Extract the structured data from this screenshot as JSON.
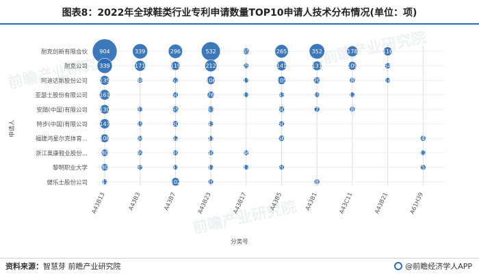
{
  "title": "图表8：2022年全球鞋类行业专利申请数量TOP10申请人技术分布情况(单位：项)",
  "source_label": "资料来源：",
  "source_text": "智慧芽 前瞻产业研究院",
  "brand": "@前瞻经济学人APP",
  "watermark": "前瞻产业研究院",
  "colors": {
    "bubble": "#2d6db5",
    "text_on_bubble": "#ffffff",
    "grid": "#dddddd",
    "axis_text": "#555555",
    "accent": "#2d6db5"
  },
  "chart_data": {
    "type": "scatter",
    "subtype": "bubble",
    "xlabel": "分类号",
    "ylabel": "申请人",
    "x_categories": [
      "A43B13",
      "A43B3",
      "A43B7",
      "A43B23",
      "A43B17",
      "A43B5",
      "A43B1",
      "A43C11",
      "A43B21",
      "A61H39"
    ],
    "y_categories": [
      "耐克创新有限合伙",
      "耐克公司",
      "阿迪达斯股份公司",
      "亚瑟士股份有限公司",
      "安踏(中国)有限公司",
      "特步(中国)有限公司",
      "福建鸿星尔克体育...",
      "浙江奥康鞋业股份...",
      "黎明职业大学",
      "健乐士股份公司"
    ],
    "grid": true,
    "points": [
      {
        "x": "A43B13",
        "y": "耐克创新有限合伙",
        "value": 904
      },
      {
        "x": "A43B3",
        "y": "耐克创新有限合伙",
        "value": 339
      },
      {
        "x": "A43B7",
        "y": "耐克创新有限合伙",
        "value": 296
      },
      {
        "x": "A43B23",
        "y": "耐克创新有限合伙",
        "value": 532
      },
      {
        "x": "A43B17",
        "y": "耐克创新有限合伙",
        "value": 65
      },
      {
        "x": "A43B5",
        "y": "耐克创新有限合伙",
        "value": 265
      },
      {
        "x": "A43B1",
        "y": "耐克创新有限合伙",
        "value": 352
      },
      {
        "x": "A43C11",
        "y": "耐克创新有限合伙",
        "value": 178
      },
      {
        "x": "A43B21",
        "y": "耐克创新有限合伙",
        "value": 116
      },
      {
        "x": "A43B13",
        "y": "耐克公司",
        "value": 339
      },
      {
        "x": "A43B3",
        "y": "耐克公司",
        "value": 171
      },
      {
        "x": "A43B7",
        "y": "耐克公司",
        "value": 119
      },
      {
        "x": "A43B23",
        "y": "耐克公司",
        "value": 212
      },
      {
        "x": "A43B17",
        "y": "耐克公司",
        "value": 29
      },
      {
        "x": "A43B5",
        "y": "耐克公司",
        "value": 141
      },
      {
        "x": "A43B1",
        "y": "耐克公司",
        "value": 131
      },
      {
        "x": "A43C11",
        "y": "耐克公司",
        "value": 109
      },
      {
        "x": "A43B21",
        "y": "耐克公司",
        "value": 54
      },
      {
        "x": "A43B13",
        "y": "阿迪达斯股份公司",
        "value": 135
      },
      {
        "x": "A43B3",
        "y": "阿迪达斯股份公司",
        "value": 48
      },
      {
        "x": "A43B7",
        "y": "阿迪达斯股份公司",
        "value": 52
      },
      {
        "x": "A43B23",
        "y": "阿迪达斯股份公司",
        "value": 106
      },
      {
        "x": "A43B17",
        "y": "阿迪达斯股份公司",
        "value": 11
      },
      {
        "x": "A43B5",
        "y": "阿迪达斯股份公司",
        "value": 105
      },
      {
        "x": "A43B1",
        "y": "阿迪达斯股份公司",
        "value": 70
      },
      {
        "x": "A43C11",
        "y": "阿迪达斯股份公司",
        "value": 8
      },
      {
        "x": "A43B21",
        "y": "阿迪达斯股份公司",
        "value": 14
      },
      {
        "x": "A43B13",
        "y": "亚瑟士股份有限公司",
        "value": 161
      },
      {
        "x": "A43B7",
        "y": "亚瑟士股份有限公司",
        "value": 50
      },
      {
        "x": "A43B23",
        "y": "亚瑟士股份有限公司",
        "value": 76
      },
      {
        "x": "A43B17",
        "y": "亚瑟士股份有限公司",
        "value": 11
      },
      {
        "x": "A43B5",
        "y": "亚瑟士股份有限公司",
        "value": 43
      },
      {
        "x": "A43B1",
        "y": "亚瑟士股份有限公司",
        "value": 19
      },
      {
        "x": "A43C11",
        "y": "亚瑟士股份有限公司",
        "value": 12
      },
      {
        "x": "A43B13",
        "y": "安踏(中国)有限公司",
        "value": 130
      },
      {
        "x": "A43B3",
        "y": "安踏(中国)有限公司",
        "value": 33
      },
      {
        "x": "A43B7",
        "y": "安踏(中国)有限公司",
        "value": 65
      },
      {
        "x": "A43B23",
        "y": "安踏(中国)有限公司",
        "value": 63
      },
      {
        "x": "A43B5",
        "y": "安踏(中国)有限公司",
        "value": 60
      },
      {
        "x": "A43B1",
        "y": "安踏(中国)有限公司",
        "value": 7
      },
      {
        "x": "A43C11",
        "y": "安踏(中国)有限公司",
        "value": 8
      },
      {
        "x": "A43B13",
        "y": "特步(中国)有限公司",
        "value": 147
      },
      {
        "x": "A43B3",
        "y": "特步(中国)有限公司",
        "value": 19
      },
      {
        "x": "A43B7",
        "y": "特步(中国)有限公司",
        "value": 60
      },
      {
        "x": "A43B23",
        "y": "特步(中国)有限公司",
        "value": 43
      },
      {
        "x": "A43B5",
        "y": "特步(中国)有限公司",
        "value": 50
      },
      {
        "x": "A43B13",
        "y": "福建鸿星尔克体育...",
        "value": 108
      },
      {
        "x": "A43B3",
        "y": "福建鸿星尔克体育...",
        "value": 34
      },
      {
        "x": "A43B7",
        "y": "福建鸿星尔克体育...",
        "value": 42
      },
      {
        "x": "A43B23",
        "y": "福建鸿星尔克体育...",
        "value": 41
      },
      {
        "x": "A43B5",
        "y": "福建鸿星尔克体育...",
        "value": 56
      },
      {
        "x": "A61H39",
        "y": "福建鸿星尔克体育...",
        "value": 4
      },
      {
        "x": "A43B13",
        "y": "浙江奥康鞋业股份...",
        "value": 80
      },
      {
        "x": "A43B3",
        "y": "浙江奥康鞋业股份...",
        "value": 49
      },
      {
        "x": "A43B7",
        "y": "浙江奥康鞋业股份...",
        "value": 49
      },
      {
        "x": "A43B23",
        "y": "浙江奥康鞋业股份...",
        "value": 40
      },
      {
        "x": "A43B17",
        "y": "浙江奥康鞋业股份...",
        "value": 46
      },
      {
        "x": "A61H39",
        "y": "浙江奥康鞋业股份...",
        "value": 12
      },
      {
        "x": "A43B13",
        "y": "黎明职业大学",
        "value": 80
      },
      {
        "x": "A43B3",
        "y": "黎明职业大学",
        "value": 35
      },
      {
        "x": "A43B7",
        "y": "黎明职业大学",
        "value": 41
      },
      {
        "x": "A43B23",
        "y": "黎明职业大学",
        "value": 47
      },
      {
        "x": "A43B17",
        "y": "黎明职业大学",
        "value": 17
      },
      {
        "x": "A43B5",
        "y": "黎明职业大学",
        "value": 20
      },
      {
        "x": "A61H39",
        "y": "黎明职业大学",
        "value": 5
      },
      {
        "x": "A43B13",
        "y": "健乐士股份公司",
        "value": 47
      },
      {
        "x": "A43B7",
        "y": "健乐士股份公司",
        "value": 102
      },
      {
        "x": "A43B23",
        "y": "健乐士股份公司",
        "value": 20
      },
      {
        "x": "A43B1",
        "y": "健乐士股份公司",
        "value": 8
      }
    ]
  }
}
